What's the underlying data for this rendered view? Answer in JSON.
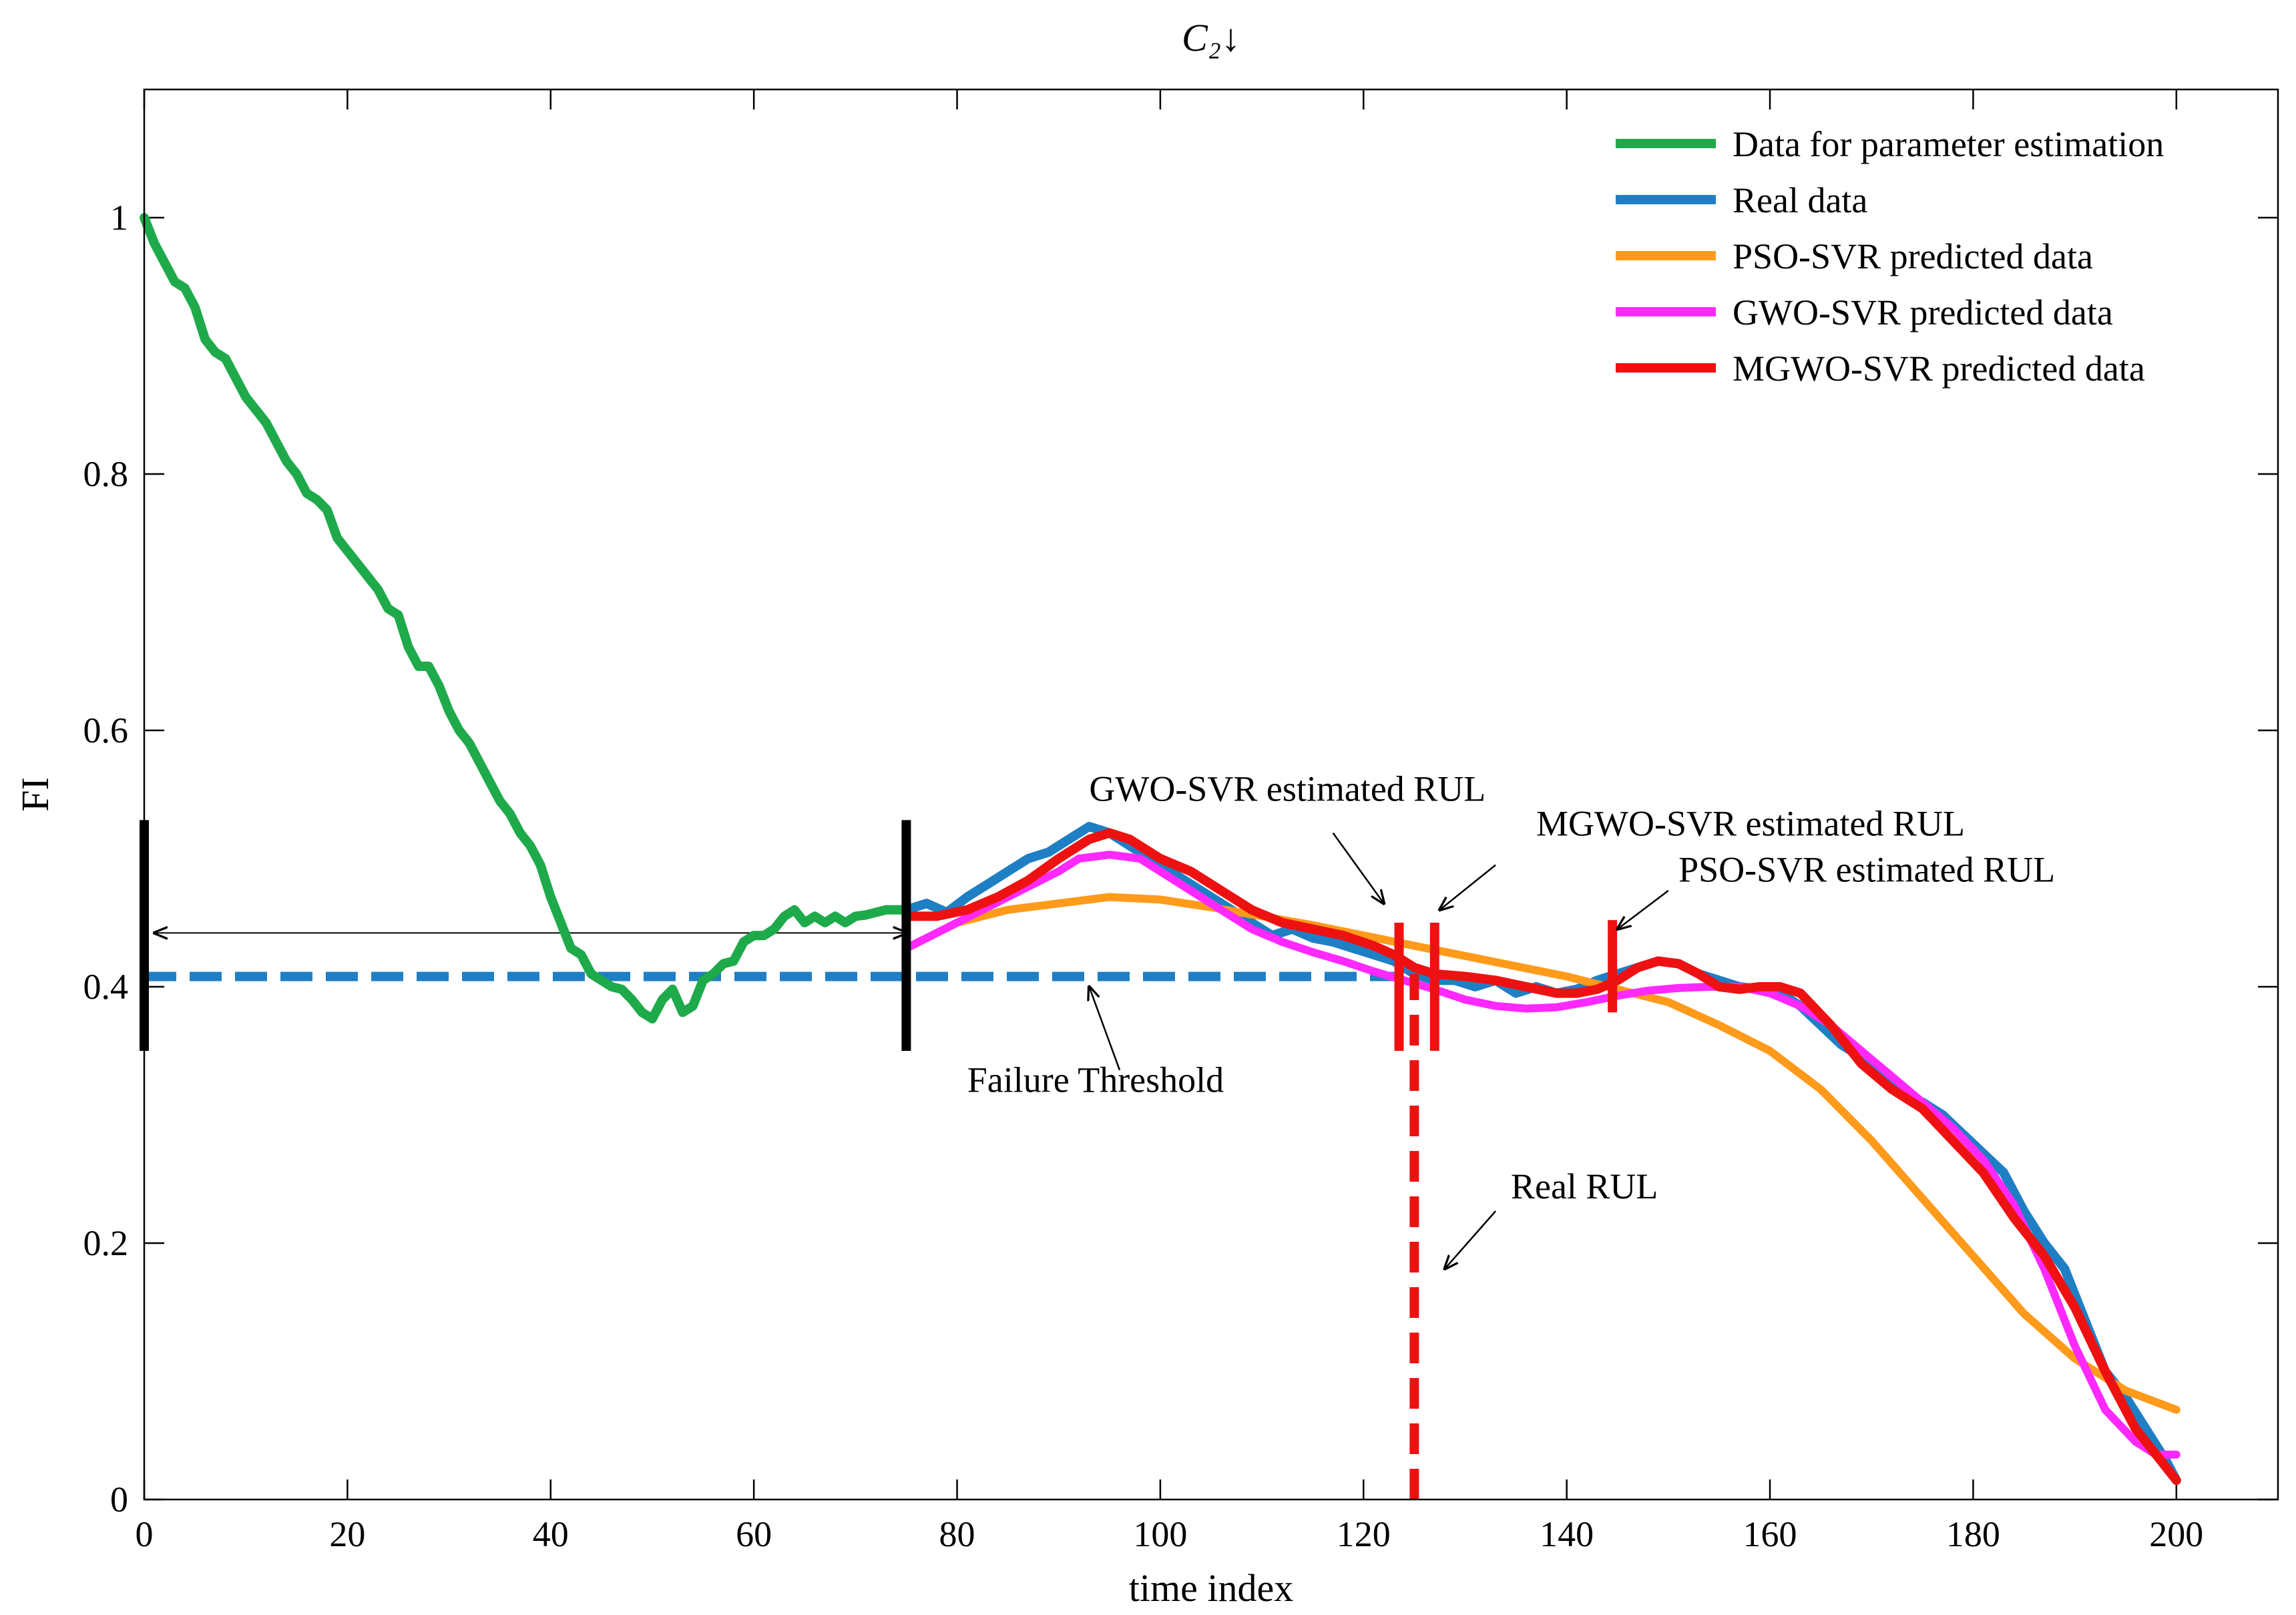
{
  "chart_data": {
    "type": "line",
    "title": "C₂↓",
    "xlabel": "time index",
    "ylabel": "FI",
    "xlim": [
      0,
      210
    ],
    "ylim": [
      0,
      1.1
    ],
    "xticks": [
      0,
      20,
      40,
      60,
      80,
      100,
      120,
      140,
      160,
      180,
      200
    ],
    "yticks": [
      0,
      0.2,
      0.4,
      0.6,
      0.8,
      1
    ],
    "xtick_labels": [
      "0",
      "20",
      "40",
      "60",
      "80",
      "100",
      "120",
      "140",
      "160",
      "180",
      "200"
    ],
    "ytick_labels": [
      "0",
      "0.2",
      "0.4",
      "0.6",
      "0.8",
      "1"
    ],
    "legend_position": "top-right",
    "colors": {
      "green": "#1eaa4a",
      "blue": "#1f7fc4",
      "orange": "#ff9a1a",
      "magenta": "#ff29ff",
      "red": "#ee1111",
      "black": "#000000"
    },
    "series": [
      {
        "name": "Data for parameter estimation",
        "color": "#1eaa4a",
        "x": [
          0,
          1,
          2,
          3,
          4,
          5,
          6,
          7,
          8,
          9,
          10,
          11,
          12,
          13,
          14,
          15,
          16,
          17,
          18,
          19,
          20,
          21,
          22,
          23,
          24,
          25,
          26,
          27,
          28,
          29,
          30,
          31,
          32,
          33,
          34,
          35,
          36,
          37,
          38,
          39,
          40,
          41,
          42,
          43,
          44,
          45,
          46,
          47,
          48,
          49,
          50,
          51,
          52,
          53,
          54,
          55,
          56,
          57,
          58,
          59,
          60,
          61,
          62,
          63,
          64,
          65,
          66,
          67,
          68,
          69,
          70,
          71,
          72,
          73,
          74,
          75
        ],
        "y": [
          1.0,
          0.98,
          0.965,
          0.95,
          0.945,
          0.93,
          0.905,
          0.895,
          0.89,
          0.875,
          0.86,
          0.85,
          0.84,
          0.825,
          0.81,
          0.8,
          0.785,
          0.78,
          0.772,
          0.75,
          0.74,
          0.73,
          0.72,
          0.71,
          0.695,
          0.69,
          0.665,
          0.65,
          0.65,
          0.635,
          0.615,
          0.6,
          0.59,
          0.575,
          0.56,
          0.545,
          0.535,
          0.52,
          0.51,
          0.495,
          0.47,
          0.45,
          0.43,
          0.425,
          0.41,
          0.405,
          0.4,
          0.398,
          0.39,
          0.38,
          0.375,
          0.39,
          0.398,
          0.38,
          0.385,
          0.405,
          0.41,
          0.418,
          0.42,
          0.435,
          0.44,
          0.44,
          0.445,
          0.455,
          0.46,
          0.45,
          0.455,
          0.45,
          0.455,
          0.45,
          0.455,
          0.456,
          0.458,
          0.46,
          0.46,
          0.46
        ]
      },
      {
        "name": "Real data",
        "color": "#1f7fc4",
        "x": [
          75,
          77,
          79,
          81,
          83,
          85,
          87,
          89,
          91,
          93,
          95,
          97,
          99,
          101,
          103,
          105,
          107,
          109,
          111,
          113,
          115,
          117,
          119,
          121,
          123,
          125,
          127,
          129,
          131,
          133,
          135,
          137,
          139,
          141,
          143,
          145,
          147,
          149,
          151,
          153,
          155,
          157,
          159,
          161,
          163,
          165,
          167,
          169,
          171,
          173,
          175,
          177,
          179,
          181,
          183,
          185,
          187,
          189,
          191,
          193,
          195,
          197,
          199,
          200
        ],
        "y": [
          0.46,
          0.465,
          0.458,
          0.47,
          0.48,
          0.49,
          0.5,
          0.505,
          0.515,
          0.525,
          0.52,
          0.51,
          0.5,
          0.49,
          0.48,
          0.47,
          0.46,
          0.45,
          0.44,
          0.445,
          0.438,
          0.435,
          0.43,
          0.425,
          0.42,
          0.41,
          0.405,
          0.405,
          0.4,
          0.405,
          0.395,
          0.4,
          0.395,
          0.398,
          0.405,
          0.41,
          0.415,
          0.42,
          0.418,
          0.41,
          0.405,
          0.4,
          0.398,
          0.395,
          0.385,
          0.37,
          0.355,
          0.345,
          0.33,
          0.315,
          0.31,
          0.3,
          0.285,
          0.27,
          0.255,
          0.225,
          0.2,
          0.18,
          0.14,
          0.1,
          0.08,
          0.055,
          0.03,
          0.015
        ]
      },
      {
        "name": "PSO-SVR predicted data",
        "color": "#ff9a1a",
        "x": [
          75,
          80,
          85,
          90,
          95,
          100,
          105,
          110,
          115,
          120,
          125,
          130,
          135,
          140,
          145,
          150,
          155,
          160,
          165,
          170,
          175,
          180,
          185,
          190,
          195,
          200
        ],
        "y": [
          0.43,
          0.45,
          0.46,
          0.465,
          0.47,
          0.468,
          0.462,
          0.455,
          0.448,
          0.44,
          0.432,
          0.424,
          0.416,
          0.408,
          0.398,
          0.388,
          0.37,
          0.35,
          0.32,
          0.28,
          0.235,
          0.19,
          0.145,
          0.11,
          0.085,
          0.07
        ]
      },
      {
        "name": "GWO-SVR predicted data",
        "color": "#ff29ff",
        "x": [
          75,
          80,
          85,
          90,
          92,
          95,
          98,
          100,
          103,
          106,
          109,
          112,
          115,
          118,
          121,
          124,
          127,
          130,
          133,
          136,
          139,
          142,
          145,
          148,
          151,
          154,
          157,
          160,
          163,
          166,
          169,
          172,
          175,
          178,
          181,
          184,
          187,
          190,
          193,
          196,
          198,
          200
        ],
        "y": [
          0.43,
          0.45,
          0.47,
          0.49,
          0.5,
          0.503,
          0.5,
          0.49,
          0.475,
          0.46,
          0.445,
          0.435,
          0.427,
          0.42,
          0.412,
          0.405,
          0.398,
          0.39,
          0.385,
          0.383,
          0.384,
          0.388,
          0.393,
          0.397,
          0.399,
          0.4,
          0.4,
          0.395,
          0.385,
          0.37,
          0.35,
          0.33,
          0.31,
          0.29,
          0.265,
          0.23,
          0.18,
          0.12,
          0.07,
          0.045,
          0.035,
          0.035
        ]
      },
      {
        "name": "MGWO-SVR predicted data",
        "color": "#ee1111",
        "x": [
          75,
          78,
          81,
          84,
          87,
          90,
          93,
          95,
          97,
          100,
          103,
          106,
          109,
          112,
          115,
          118,
          121,
          123,
          125,
          127,
          130,
          133,
          136,
          139,
          141,
          143,
          145,
          147,
          149,
          151,
          153,
          155,
          157,
          159,
          161,
          163,
          166,
          169,
          172,
          175,
          178,
          181,
          184,
          187,
          190,
          193,
          196,
          198,
          200
        ],
        "y": [
          0.455,
          0.455,
          0.46,
          0.47,
          0.483,
          0.5,
          0.515,
          0.52,
          0.515,
          0.5,
          0.49,
          0.475,
          0.46,
          0.45,
          0.445,
          0.44,
          0.432,
          0.425,
          0.415,
          0.41,
          0.408,
          0.405,
          0.4,
          0.395,
          0.395,
          0.398,
          0.405,
          0.415,
          0.42,
          0.418,
          0.41,
          0.4,
          0.398,
          0.4,
          0.4,
          0.395,
          0.37,
          0.34,
          0.32,
          0.305,
          0.28,
          0.255,
          0.22,
          0.19,
          0.15,
          0.1,
          0.055,
          0.035,
          0.015
        ]
      }
    ],
    "failure_threshold": {
      "y": 0.408,
      "x_start": 0,
      "x_end": 125
    },
    "markers": [
      {
        "name": "start-marker",
        "x": 0,
        "y0": 0.35,
        "y1": 0.53,
        "color": "#000000"
      },
      {
        "name": "prediction-start-marker",
        "x": 75,
        "y0": 0.35,
        "y1": 0.53,
        "color": "#000000"
      },
      {
        "name": "gwo-rul-marker",
        "x": 123.5,
        "y0": 0.35,
        "y1": 0.45,
        "color": "#ee1111"
      },
      {
        "name": "mgwo-rul-marker",
        "x": 127,
        "y0": 0.35,
        "y1": 0.45,
        "color": "#ee1111"
      },
      {
        "name": "pso-rul-marker",
        "x": 144.5,
        "y0": 0.38,
        "y1": 0.452,
        "color": "#ee1111"
      }
    ],
    "real_rul_line": {
      "x": 125,
      "y0": 0,
      "y1": 0.41,
      "color": "#ee1111"
    },
    "span_arrow": {
      "x0": 1,
      "x1": 75,
      "y": 0.442
    },
    "annotations": [
      {
        "name": "gwo-annotation",
        "text": "GWO-SVR estimated RUL",
        "tx": 93,
        "ty": 0.545,
        "ax0": 117,
        "ay0": 0.52,
        "ax1": 122,
        "ay1": 0.465
      },
      {
        "name": "mgwo-annotation",
        "text": "MGWO-SVR estimated RUL",
        "tx": 137,
        "ty": 0.518,
        "ax0": 133,
        "ay0": 0.495,
        "ax1": 127.5,
        "ay1": 0.46
      },
      {
        "name": "pso-annotation",
        "text": "PSO-SVR estimated RUL",
        "tx": 151,
        "ty": 0.482,
        "ax0": 150,
        "ay0": 0.475,
        "ax1": 145,
        "ay1": 0.445
      },
      {
        "name": "failure-threshold-annotation",
        "text": "Failure Threshold",
        "tx": 81,
        "ty": 0.318,
        "ax0": 96,
        "ay0": 0.335,
        "ax1": 93,
        "ay1": 0.4
      },
      {
        "name": "real-rul-annotation",
        "text": "Real RUL",
        "tx": 134.5,
        "ty": 0.235,
        "ax0": 133,
        "ay0": 0.225,
        "ax1": 128,
        "ay1": 0.18
      }
    ]
  }
}
